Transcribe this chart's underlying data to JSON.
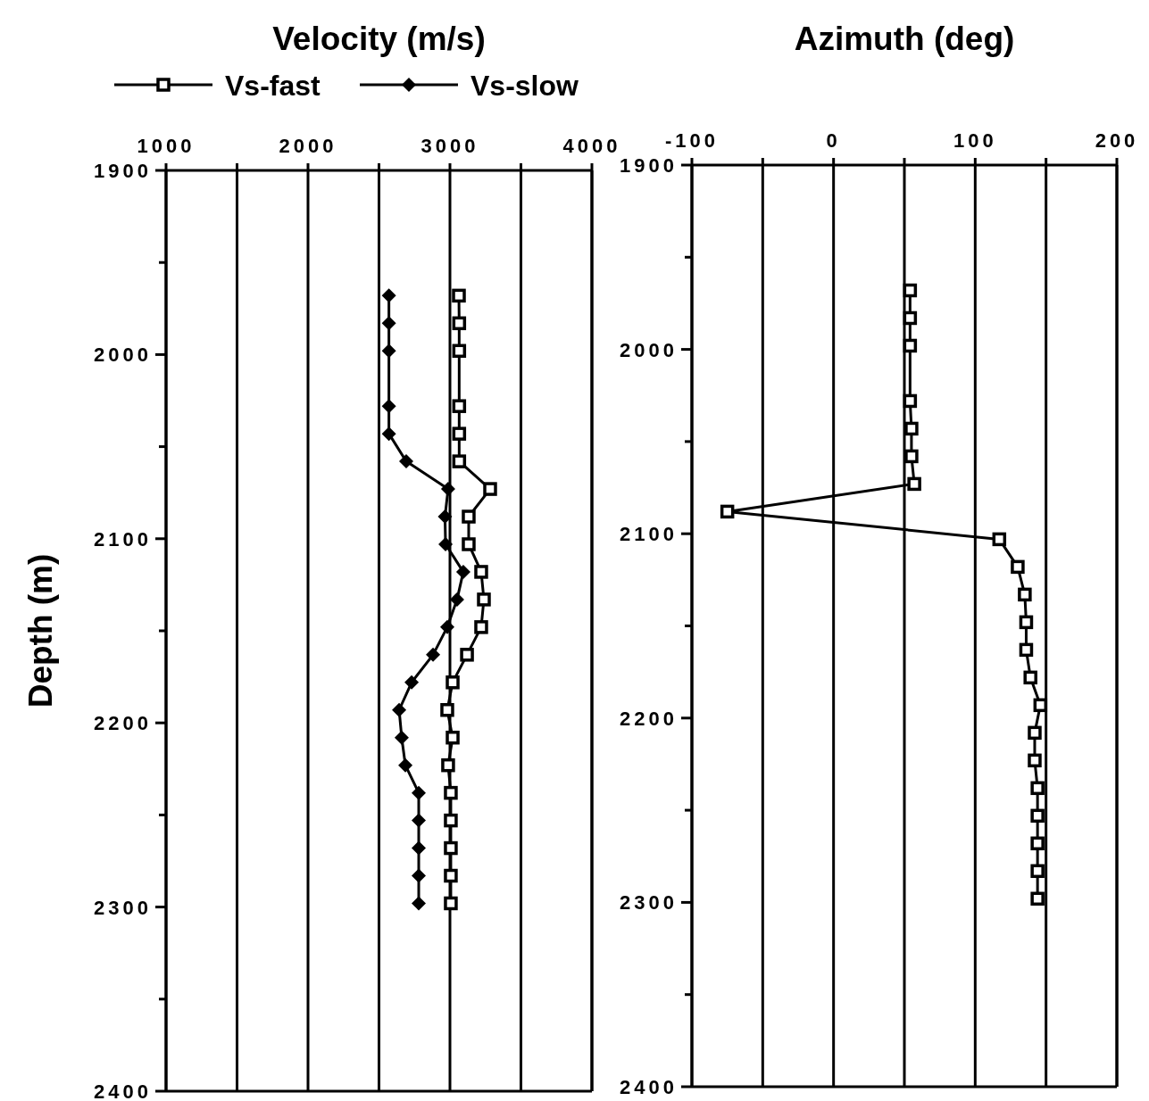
{
  "chart_data": [
    {
      "type": "line",
      "title": "Velocity (m/s)",
      "ylabel": "Depth (m)",
      "xlim": [
        1000,
        4000
      ],
      "xticks": [
        1000,
        {
          "value": 1500,
          "label": null
        },
        2000,
        {
          "value": 2500,
          "label": null
        },
        3000,
        {
          "value": 3500,
          "label": null
        },
        4000
      ],
      "ylim": [
        2400,
        1900
      ],
      "yticks": [
        1900,
        {
          "value": 1950,
          "label": null
        },
        2000,
        {
          "value": 2050,
          "label": null
        },
        2100,
        {
          "value": 2150,
          "label": null
        },
        2200,
        {
          "value": 2250,
          "label": null
        },
        2300,
        {
          "value": 2350,
          "label": null
        },
        2400
      ],
      "grid": "x",
      "legend": "top",
      "line_style": "solid",
      "series": [
        {
          "name": "Vs-fast",
          "color": "#000000",
          "marker": "square",
          "x": [
            3063,
            3065,
            3065,
            3065,
            3065,
            3065,
            3283,
            3132,
            3132,
            3220,
            3239,
            3220,
            3120,
            3019,
            2981,
            3019,
            2987,
            3006,
            3006,
            3006,
            3006,
            3006
          ],
          "values": [
            1968,
            1983,
            1998,
            2028,
            2043,
            2058,
            2073,
            2088,
            2103,
            2118,
            2133,
            2148,
            2163,
            2178,
            2193,
            2208,
            2223,
            2238,
            2253,
            2268,
            2283,
            2298
          ]
        },
        {
          "name": "Vs-slow",
          "color": "#000000",
          "marker": "diamond",
          "x": [
            2570,
            2570,
            2570,
            2570,
            2570,
            2692,
            2987,
            2965,
            2969,
            3094,
            3050,
            2981,
            2881,
            2730,
            2642,
            2660,
            2686,
            2780,
            2780,
            2780,
            2780,
            2780
          ],
          "values": [
            1968,
            1983,
            1998,
            2028,
            2043,
            2058,
            2073,
            2088,
            2103,
            2118,
            2133,
            2148,
            2163,
            2178,
            2193,
            2208,
            2223,
            2238,
            2253,
            2268,
            2283,
            2298
          ]
        }
      ]
    },
    {
      "type": "line",
      "title": "Azimuth (deg)",
      "xlim": [
        -100,
        200
      ],
      "xticks": [
        -100,
        {
          "value": -50,
          "label": null
        },
        0,
        {
          "value": 50,
          "label": null
        },
        100,
        {
          "value": 150,
          "label": null
        },
        200
      ],
      "ylim": [
        2400,
        1900
      ],
      "yticks": [
        1900,
        {
          "value": 1950,
          "label": null
        },
        2000,
        {
          "value": 2050,
          "label": null
        },
        2100,
        {
          "value": 2150,
          "label": null
        },
        2200,
        {
          "value": 2250,
          "label": null
        },
        2300,
        {
          "value": 2350,
          "label": null
        },
        2400
      ],
      "grid": "x",
      "line_style": "solid",
      "series": [
        {
          "color": "#000000",
          "marker": "square",
          "x": [
            54,
            54,
            54,
            54,
            55,
            55,
            57,
            -75,
            117,
            130,
            135,
            136,
            136,
            139,
            146,
            142,
            142,
            144,
            144,
            144,
            144,
            144
          ],
          "values": [
            1968,
            1983,
            1998,
            2028,
            2043,
            2058,
            2073,
            2088,
            2103,
            2118,
            2133,
            2148,
            2163,
            2178,
            2193,
            2208,
            2223,
            2238,
            2253,
            2268,
            2283,
            2298
          ]
        }
      ]
    }
  ]
}
